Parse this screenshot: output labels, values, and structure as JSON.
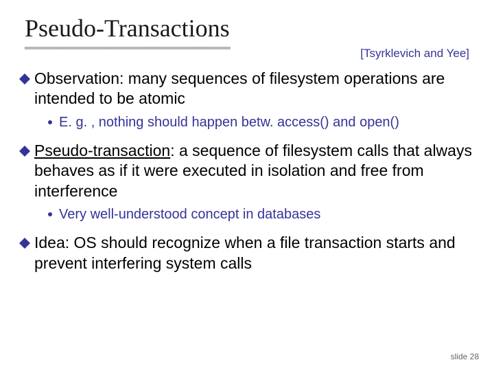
{
  "title": "Pseudo-Transactions",
  "citation": "[Tsyrklevich and Yee]",
  "diamond_color": "#333399",
  "dot_color": "#333399",
  "bullets": [
    {
      "level": 1,
      "prefix": "Observation",
      "prefix_styled": false,
      "text": ": many sequences of filesystem operations are intended to be atomic"
    },
    {
      "level": 2,
      "text": "E. g. , nothing should happen betw. access() and open()"
    },
    {
      "level": 1,
      "prefix": "Pseudo-transaction",
      "prefix_styled": true,
      "text": ": a sequence of filesystem calls that always behaves as if it were executed in isolation and free from interference"
    },
    {
      "level": 2,
      "text": "Very well-understood concept in databases"
    },
    {
      "level": 1,
      "prefix": "Idea",
      "prefix_styled": false,
      "text": ": OS should recognize when a file transaction starts and prevent interfering system calls"
    }
  ],
  "slide_number": "slide 28"
}
